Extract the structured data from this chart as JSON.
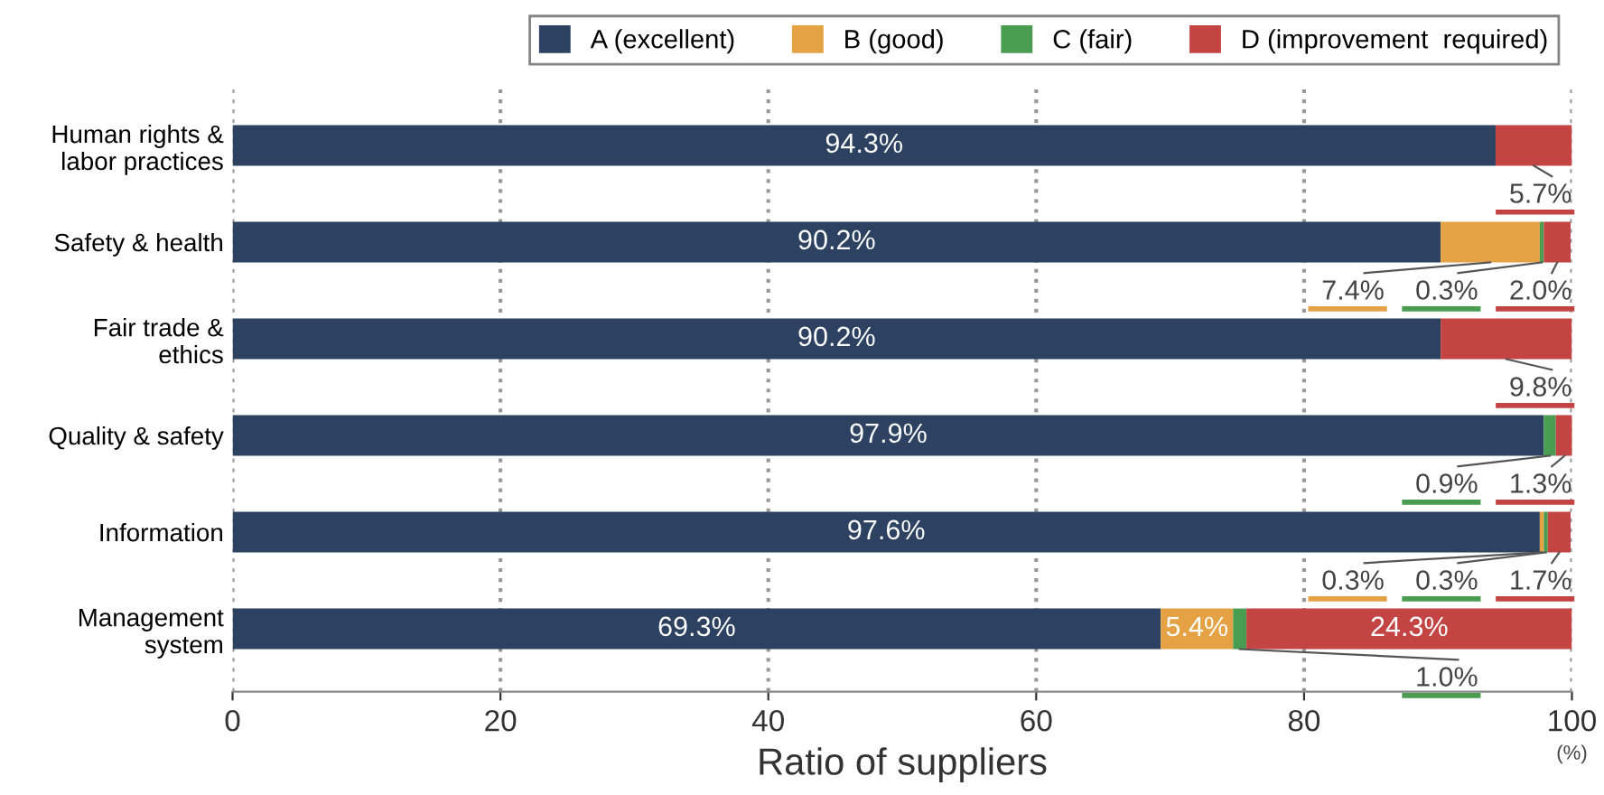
{
  "chart_data": {
    "type": "bar",
    "orientation": "horizontal",
    "stacked": true,
    "xlabel": "Ratio of suppliers",
    "annotations": [
      "(%)"
    ],
    "categories": [
      "Human rights &\nlabor practices",
      "Safety & health",
      "Fair trade &\nethics",
      "Quality & safety",
      "Information",
      "Management\nsystem"
    ],
    "series": [
      {
        "name": "A (excellent)",
        "color": "#2d4260",
        "values": [
          94.3,
          90.2,
          90.2,
          97.9,
          97.6,
          69.3
        ],
        "value_labels": [
          "94.3%",
          "90.2%",
          "90.2%",
          "97.9%",
          "97.6%",
          "69.3%"
        ]
      },
      {
        "name": "B (good)",
        "color": "#e5a245",
        "values": [
          null,
          7.4,
          null,
          null,
          0.3,
          5.4
        ],
        "value_labels": [
          null,
          "7.4%",
          null,
          null,
          "0.3%",
          "5.4%"
        ]
      },
      {
        "name": "C (fair)",
        "color": "#4a9d50",
        "values": [
          null,
          0.3,
          null,
          0.9,
          0.3,
          1.0
        ],
        "value_labels": [
          null,
          "0.3%",
          null,
          "0.9%",
          "0.3%",
          "1.0%"
        ]
      },
      {
        "name": "D (improvement  required)",
        "color": "#c44444",
        "values": [
          5.7,
          2.0,
          9.8,
          1.3,
          1.7,
          24.3
        ],
        "value_labels": [
          "5.7%",
          "2.0%",
          "9.8%",
          "1.3%",
          "1.7%",
          "24.3%"
        ]
      }
    ],
    "xlim": [
      0,
      100
    ],
    "xticks": [
      0,
      20,
      40,
      60,
      80,
      100
    ],
    "grid": "x",
    "legend": "top right"
  }
}
